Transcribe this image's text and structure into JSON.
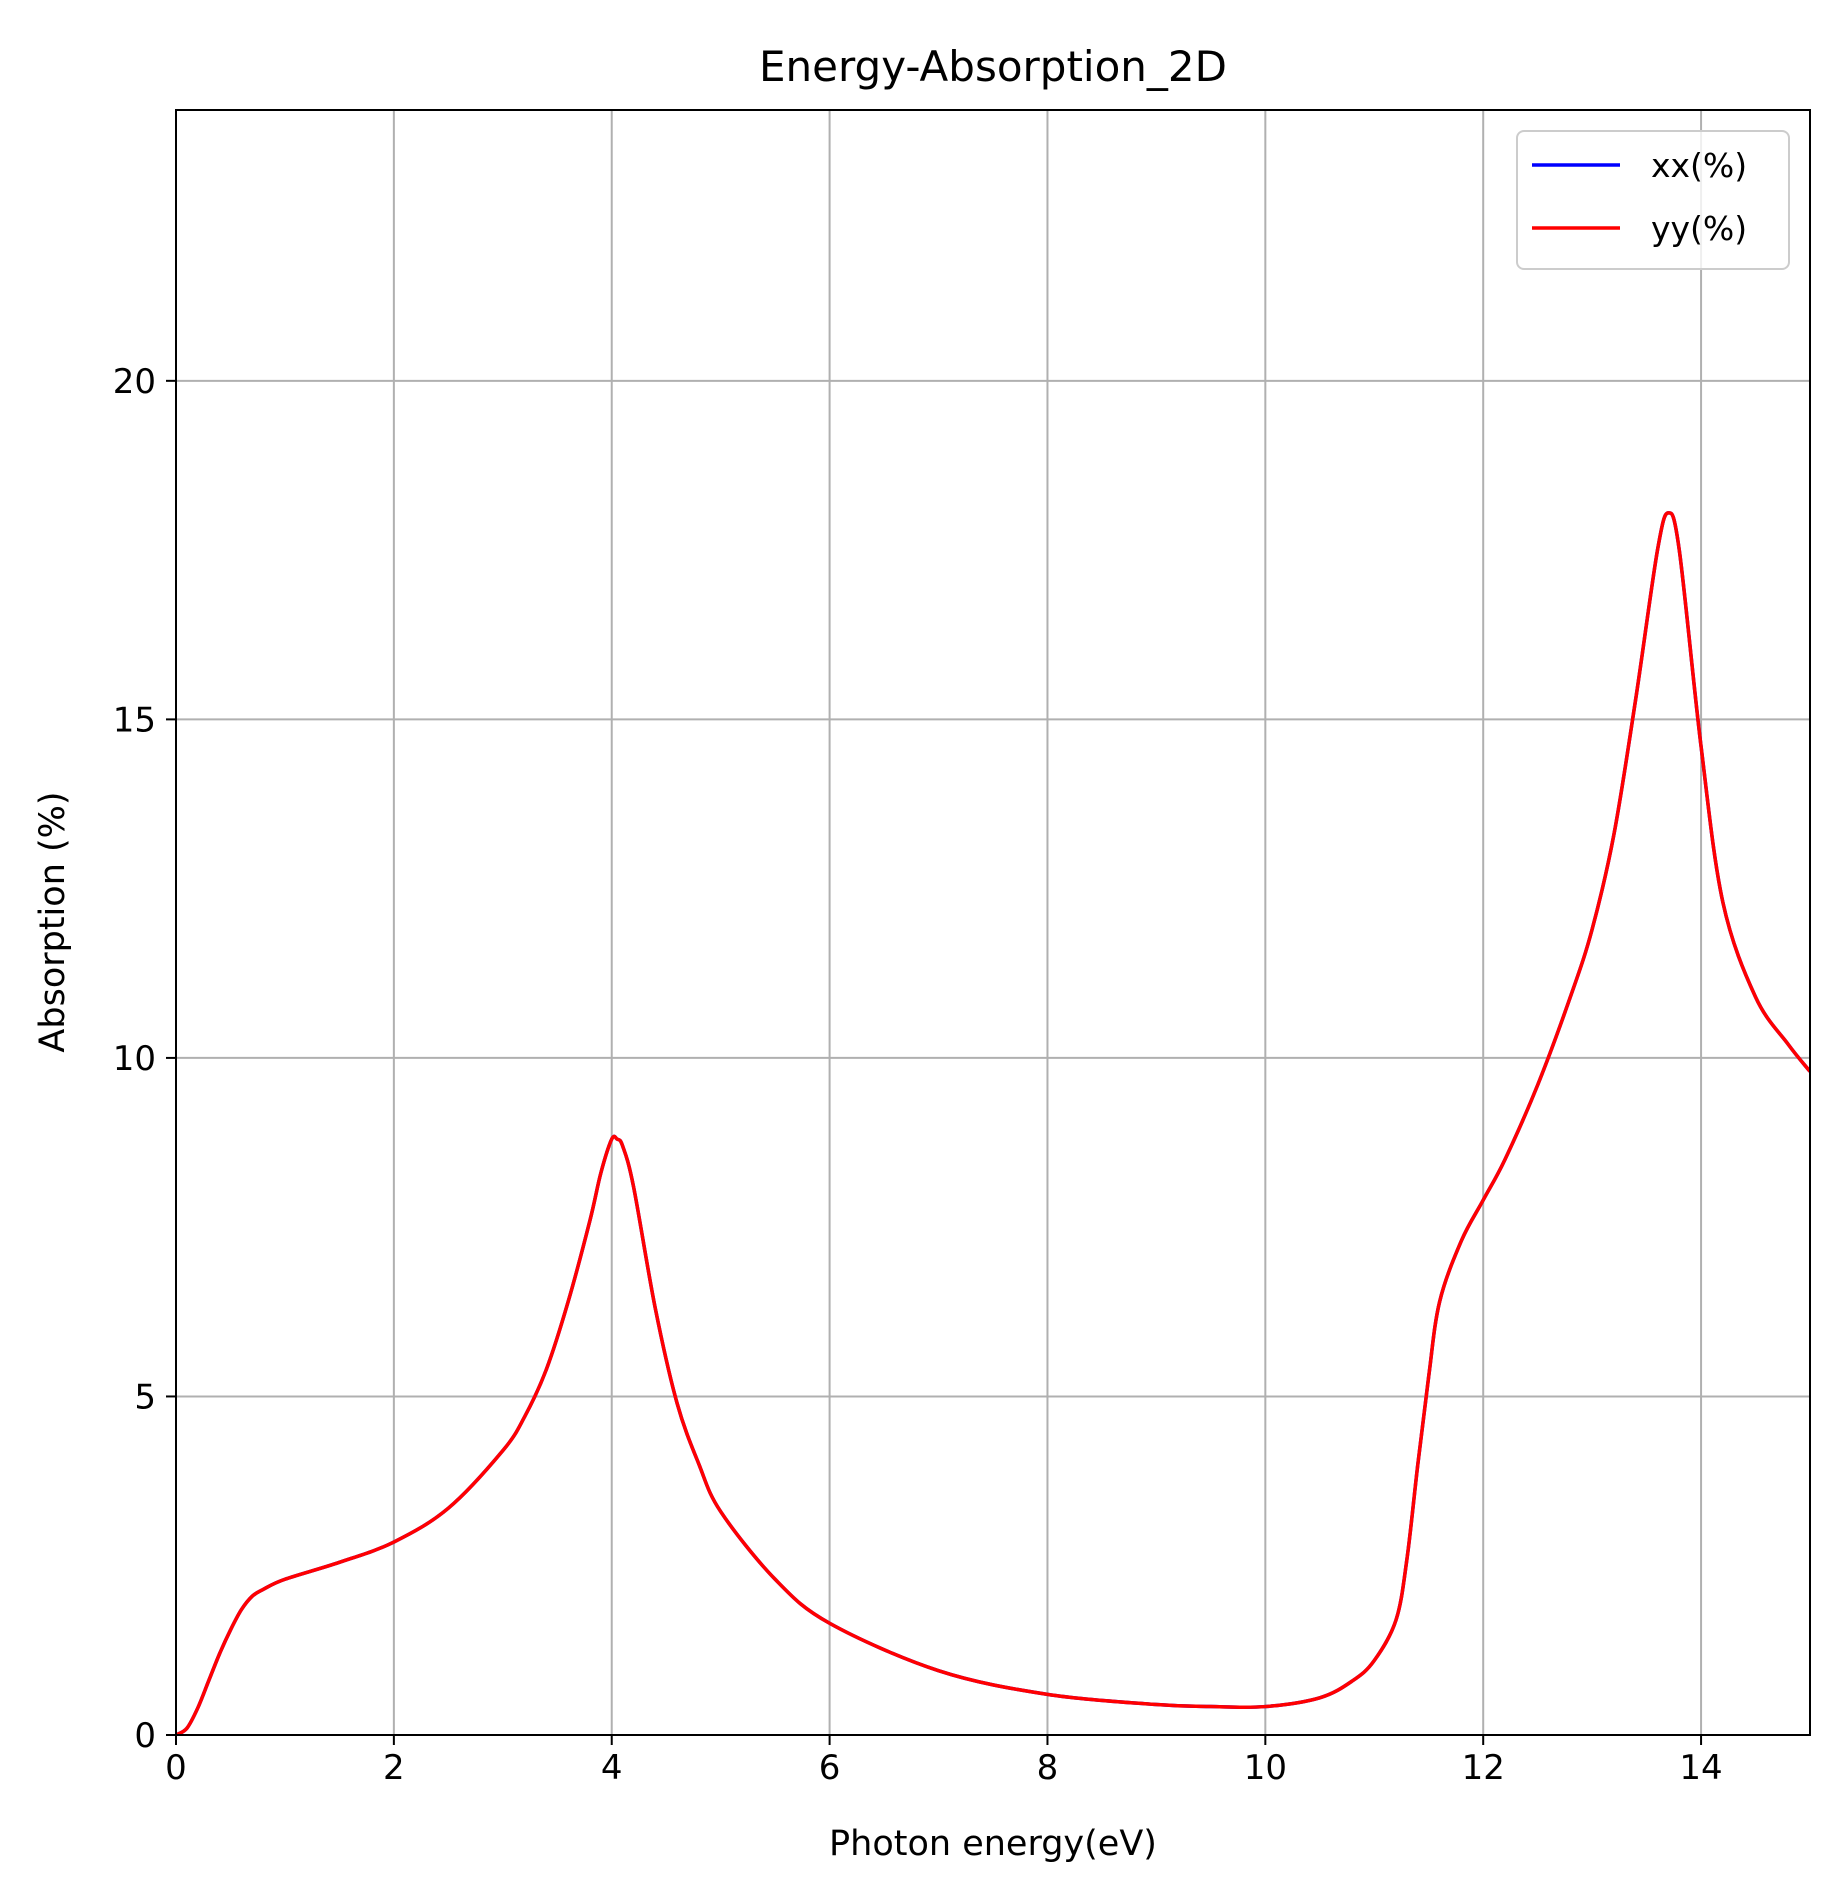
{
  "chart_data": {
    "type": "line",
    "title": "Energy-Absorption_2D",
    "xlabel": "Photon energy(eV)",
    "ylabel": "Absorption (%)",
    "xlim": [
      0,
      15
    ],
    "ylim": [
      0,
      24
    ],
    "xticks": [
      0,
      2,
      4,
      6,
      8,
      10,
      12,
      14
    ],
    "yticks": [
      0,
      5,
      10,
      15,
      20
    ],
    "xtick_labels": [
      "0",
      "2",
      "4",
      "6",
      "8",
      "10",
      "12",
      "14"
    ],
    "ytick_labels": [
      "0",
      "5",
      "10",
      "15",
      "20"
    ],
    "grid": true,
    "legend_position": "top-right",
    "x": [
      0.0,
      0.1,
      0.2,
      0.3,
      0.4,
      0.5,
      0.6,
      0.7,
      0.8,
      1.0,
      1.5,
      2.0,
      2.5,
      3.0,
      3.2,
      3.4,
      3.6,
      3.8,
      3.9,
      4.0,
      4.05,
      4.1,
      4.2,
      4.4,
      4.6,
      4.8,
      5.0,
      5.5,
      6.0,
      7.0,
      8.0,
      9.0,
      9.5,
      10.0,
      10.5,
      10.8,
      11.0,
      11.2,
      11.3,
      11.4,
      11.5,
      11.6,
      11.8,
      12.0,
      12.2,
      12.5,
      12.8,
      13.0,
      13.2,
      13.4,
      13.6,
      13.7,
      13.8,
      14.0,
      14.2,
      14.5,
      14.8,
      15.0
    ],
    "series": [
      {
        "name": "xx(%)",
        "color": "#0000ff",
        "values": [
          0.0,
          0.1,
          0.4,
          0.8,
          1.2,
          1.55,
          1.85,
          2.05,
          2.15,
          2.3,
          2.55,
          2.85,
          3.35,
          4.2,
          4.7,
          5.4,
          6.4,
          7.6,
          8.3,
          8.8,
          8.8,
          8.7,
          8.1,
          6.3,
          4.9,
          4.0,
          3.3,
          2.3,
          1.65,
          0.95,
          0.6,
          0.45,
          0.42,
          0.42,
          0.55,
          0.8,
          1.1,
          1.7,
          2.6,
          4.0,
          5.3,
          6.4,
          7.3,
          7.9,
          8.5,
          9.6,
          10.9,
          11.9,
          13.3,
          15.3,
          17.5,
          18.05,
          17.5,
          14.6,
          12.3,
          10.9,
          10.2,
          9.8
        ]
      },
      {
        "name": "yy(%)",
        "color": "#ff0000",
        "values": [
          0.0,
          0.1,
          0.4,
          0.8,
          1.2,
          1.55,
          1.85,
          2.05,
          2.15,
          2.3,
          2.55,
          2.85,
          3.35,
          4.2,
          4.7,
          5.4,
          6.4,
          7.6,
          8.3,
          8.8,
          8.8,
          8.7,
          8.1,
          6.3,
          4.9,
          4.0,
          3.3,
          2.3,
          1.65,
          0.95,
          0.6,
          0.45,
          0.42,
          0.42,
          0.55,
          0.8,
          1.1,
          1.7,
          2.6,
          4.0,
          5.3,
          6.4,
          7.3,
          7.9,
          8.5,
          9.6,
          10.9,
          11.9,
          13.3,
          15.3,
          17.5,
          18.05,
          17.5,
          14.6,
          12.3,
          10.9,
          10.2,
          9.8
        ]
      }
    ]
  }
}
